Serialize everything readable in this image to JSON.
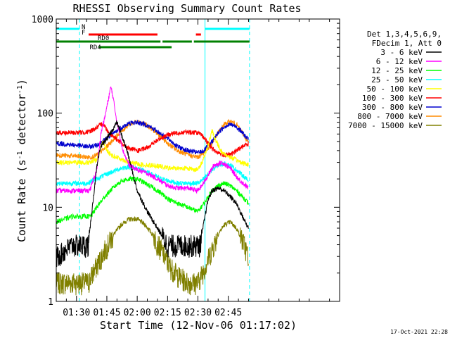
{
  "chart_data": {
    "type": "line",
    "title": "RHESSI Observing Summary Count Rates",
    "xlabel": "Start Time (12-Nov-06 01:17:02)",
    "ylabel_main": "Count Rate (s",
    "ylabel_sup1": "-1",
    "ylabel_mid": " detector",
    "ylabel_sup2": "-1",
    "ylabel_end": ")",
    "yscale": "log",
    "xlim": [
      80,
      220
    ],
    "ylim": [
      1,
      1000
    ],
    "x_ticks": [
      {
        "value": 90,
        "label": "01:30"
      },
      {
        "value": 105,
        "label": "01:45"
      },
      {
        "value": 120,
        "label": "02:00"
      },
      {
        "value": 135,
        "label": "02:15"
      },
      {
        "value": 150,
        "label": "02:30"
      },
      {
        "value": 165,
        "label": "02:45"
      }
    ],
    "y_ticks": [
      {
        "value": 1,
        "label": "1"
      },
      {
        "value": 10,
        "label": "10"
      },
      {
        "value": 100,
        "label": "100"
      },
      {
        "value": 1000,
        "label": "1000"
      }
    ],
    "legend_header": [
      "Det 1,3,4,5,6,9,",
      "FDecim 1, Att 0"
    ],
    "legend_placement": "right",
    "series": [
      {
        "name": "3 - 6 keV",
        "color": "#000000",
        "x": [
          80,
          88,
          89,
          96,
          97,
          100,
          102,
          104,
          107,
          110,
          115,
          120,
          125,
          130,
          135,
          140,
          145,
          150,
          151,
          153,
          155,
          157,
          160,
          163,
          166,
          169,
          172,
          175
        ],
        "y": [
          3,
          4,
          4,
          4,
          7,
          26,
          45,
          50,
          62,
          80,
          40,
          15,
          9,
          6,
          4,
          4,
          4,
          4,
          4,
          7,
          12,
          15,
          16,
          15,
          13,
          11,
          8,
          6
        ]
      },
      {
        "name": "6 - 12 keV",
        "color": "#ff00ff",
        "x": [
          80,
          88,
          89,
          96,
          97,
          100,
          102,
          104,
          106,
          107,
          108,
          110,
          113,
          116,
          120,
          125,
          130,
          135,
          140,
          145,
          150,
          152,
          155,
          158,
          162,
          166,
          170,
          175
        ],
        "y": [
          15,
          15,
          15,
          15,
          16,
          25,
          60,
          90,
          150,
          190,
          150,
          80,
          40,
          28,
          25,
          23,
          20,
          17,
          16,
          16,
          15,
          17,
          22,
          28,
          30,
          26,
          20,
          16
        ]
      },
      {
        "name": "12 - 25 keV",
        "color": "#00ff00",
        "x": [
          80,
          88,
          89,
          96,
          97,
          100,
          104,
          108,
          112,
          116,
          120,
          124,
          128,
          132,
          136,
          140,
          145,
          150,
          153,
          157,
          160,
          163,
          166,
          169,
          172,
          175
        ],
        "y": [
          7,
          8,
          8,
          8,
          8,
          10,
          13,
          16,
          19,
          20,
          20,
          18,
          16,
          14,
          12,
          11,
          10,
          9,
          11,
          15,
          17,
          18,
          17,
          15,
          13,
          11
        ]
      },
      {
        "name": "25 - 50 keV",
        "color": "#00ffff",
        "x": [
          80,
          88,
          89,
          96,
          97,
          100,
          104,
          108,
          112,
          116,
          120,
          124,
          128,
          132,
          136,
          140,
          145,
          150,
          153,
          157,
          160,
          163,
          166,
          169,
          172,
          175
        ],
        "y": [
          18,
          18,
          18,
          18,
          19,
          20,
          22,
          24,
          26,
          27,
          26,
          24,
          22,
          20,
          19,
          18,
          18,
          18,
          20,
          25,
          28,
          29,
          28,
          25,
          22,
          19
        ]
      },
      {
        "name": "50 - 100 keV",
        "color": "#ffff00",
        "x": [
          80,
          88,
          89,
          96,
          97,
          100,
          103,
          105,
          107,
          110,
          113,
          116,
          120,
          124,
          128,
          132,
          136,
          140,
          145,
          150,
          152,
          155,
          157,
          159,
          162,
          166,
          170,
          175
        ],
        "y": [
          30,
          30,
          30,
          30,
          30,
          32,
          50,
          40,
          36,
          34,
          32,
          30,
          29,
          28,
          28,
          27,
          26,
          26,
          26,
          25,
          30,
          45,
          65,
          50,
          38,
          34,
          31,
          28
        ]
      },
      {
        "name": "100 - 300 keV",
        "color": "#ff0000",
        "x": [
          80,
          88,
          89,
          96,
          97,
          100,
          103,
          106,
          109,
          112,
          116,
          120,
          124,
          128,
          132,
          136,
          140,
          145,
          150,
          153,
          157,
          160,
          163,
          166,
          169,
          172,
          175
        ],
        "y": [
          62,
          62,
          62,
          63,
          65,
          70,
          78,
          62,
          55,
          48,
          42,
          40,
          42,
          48,
          55,
          60,
          62,
          63,
          62,
          55,
          42,
          38,
          36,
          36,
          40,
          44,
          48
        ]
      },
      {
        "name": "300 - 800 keV",
        "color": "#0000cd",
        "x": [
          80,
          88,
          89,
          96,
          97,
          100,
          104,
          108,
          112,
          116,
          120,
          124,
          128,
          132,
          136,
          140,
          145,
          150,
          153,
          157,
          160,
          163,
          166,
          169,
          172,
          175
        ],
        "y": [
          48,
          46,
          46,
          44,
          44,
          46,
          52,
          60,
          70,
          78,
          80,
          76,
          68,
          60,
          52,
          44,
          40,
          38,
          40,
          50,
          62,
          72,
          76,
          72,
          62,
          52
        ]
      },
      {
        "name": "800 - 7000 keV",
        "color": "#ff8c00",
        "x": [
          80,
          88,
          89,
          96,
          97,
          100,
          104,
          108,
          112,
          116,
          120,
          124,
          128,
          132,
          136,
          140,
          145,
          150,
          153,
          157,
          160,
          163,
          166,
          169,
          172,
          175
        ],
        "y": [
          36,
          35,
          35,
          34,
          34,
          36,
          42,
          52,
          64,
          76,
          82,
          76,
          66,
          55,
          46,
          40,
          36,
          34,
          38,
          48,
          62,
          76,
          82,
          76,
          62,
          48
        ]
      },
      {
        "name": "7000 - 15000 keV",
        "color": "#808000",
        "x": [
          80,
          88,
          89,
          96,
          97,
          100,
          104,
          108,
          112,
          116,
          120,
          124,
          128,
          132,
          136,
          140,
          145,
          150,
          153,
          157,
          160,
          163,
          166,
          169,
          172,
          175
        ],
        "y": [
          1.6,
          1.6,
          1.6,
          1.6,
          1.8,
          2.4,
          3.5,
          5,
          6.5,
          7.5,
          7.5,
          6.5,
          5,
          3.5,
          2.4,
          1.9,
          1.6,
          1.6,
          2.2,
          3.6,
          5.2,
          6.5,
          7,
          6,
          4.5,
          3
        ]
      }
    ],
    "vertical_lines": [
      {
        "x": 91.5,
        "color": "#00ffff",
        "style": "dashed"
      },
      {
        "x": 153.5,
        "color": "#00ffff",
        "style": "solid"
      },
      {
        "x": 175.5,
        "color": "#00ffff",
        "style": "dashed"
      }
    ],
    "flag_bars": [
      {
        "name": "N",
        "color": "#00ffff",
        "row": 1,
        "segments": [
          [
            80,
            91.5
          ],
          [
            153.5,
            175.5
          ]
        ],
        "label_x": 92.5
      },
      {
        "name": "F",
        "color": "#ff0000",
        "row": 2,
        "segments": [
          [
            96,
            130
          ],
          [
            149,
            151.5
          ]
        ],
        "label_x": 92.5
      },
      {
        "name": "RD0",
        "color": "#008000",
        "row": 3,
        "segments": [
          [
            80,
            131.5
          ],
          [
            132.5,
            147
          ],
          [
            148,
            175.5
          ]
        ],
        "label_x": 100.5
      },
      {
        "name": "RD4",
        "color": "#008000",
        "row": 4,
        "segments": [
          [
            101,
            137
          ]
        ],
        "label_x": 96.5
      }
    ]
  },
  "timestamp": "17-Oct-2021 22:28"
}
